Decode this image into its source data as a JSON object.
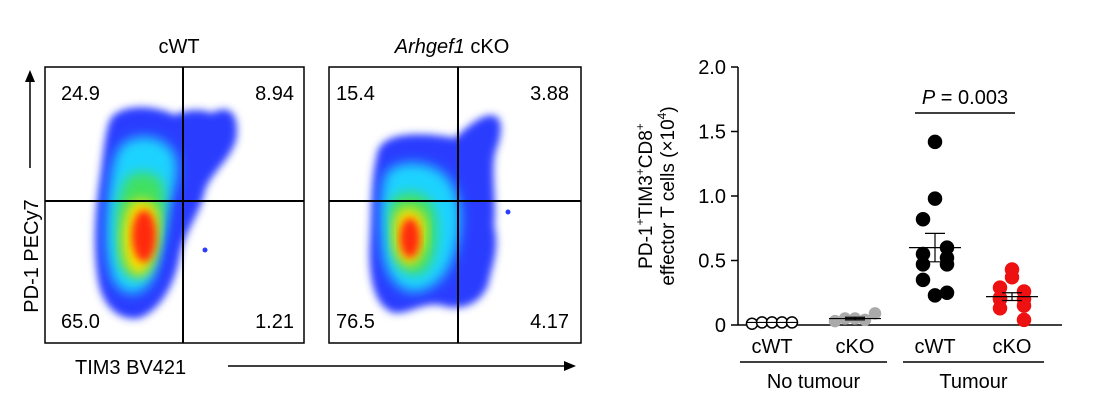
{
  "flow_panels": {
    "y_axis_label": "PD-1 PECy7",
    "x_axis_label": "TIM3 BV421",
    "panels": [
      {
        "title": "cWT",
        "title_italic_part": "",
        "quadrants": {
          "top_left": "24.9",
          "top_right": "8.94",
          "bottom_left": "65.0",
          "bottom_right": "1.21"
        }
      },
      {
        "title": " cKO",
        "title_italic_part": "Arhgef1",
        "quadrants": {
          "top_left": "15.4",
          "top_right": "3.88",
          "bottom_left": "76.5",
          "bottom_right": "4.17"
        }
      }
    ]
  },
  "chart_data": {
    "type": "scatter",
    "ylabel_line1_parts": [
      "PD-1",
      "+",
      "TIM3",
      "+",
      "CD8",
      "+"
    ],
    "ylabel_line2_parts": [
      "effector T cells (×10",
      "4",
      ")"
    ],
    "ylim": [
      0,
      2.0
    ],
    "yticks": [
      "0",
      "0.5",
      "1.0",
      "1.5",
      "2.0"
    ],
    "groups": [
      {
        "label": "cWT",
        "condition": "No tumour",
        "color": "#ffffff",
        "edge": "#000000",
        "mean": 0.02,
        "sem": 0.0,
        "values": [
          0.01,
          0.02,
          0.02,
          0.02,
          0.02
        ]
      },
      {
        "label": "cKO",
        "condition": "No tumour",
        "color": "#aaaaaa",
        "edge": "#aaaaaa",
        "mean": 0.05,
        "sem": 0.01,
        "values": [
          0.03,
          0.05,
          0.05,
          0.04,
          0.09
        ]
      },
      {
        "label": "cWT",
        "condition": "Tumour",
        "color": "#000000",
        "edge": "#000000",
        "mean": 0.6,
        "sem": 0.11,
        "values": [
          1.42,
          0.98,
          0.82,
          0.6,
          0.55,
          0.52,
          0.47,
          0.47,
          0.35,
          0.25,
          0.23
        ]
      },
      {
        "label": "cKO",
        "condition": "Tumour",
        "color": "#ee1111",
        "edge": "#ee1111",
        "mean": 0.22,
        "sem": 0.03,
        "values": [
          0.43,
          0.37,
          0.29,
          0.26,
          0.21,
          0.2,
          0.2,
          0.15,
          0.13,
          0.04
        ]
      }
    ],
    "conditions": [
      "No tumour",
      "Tumour"
    ],
    "annotation": {
      "p_label": "P",
      "p_text": " = 0.003",
      "between": [
        2,
        3
      ]
    }
  }
}
